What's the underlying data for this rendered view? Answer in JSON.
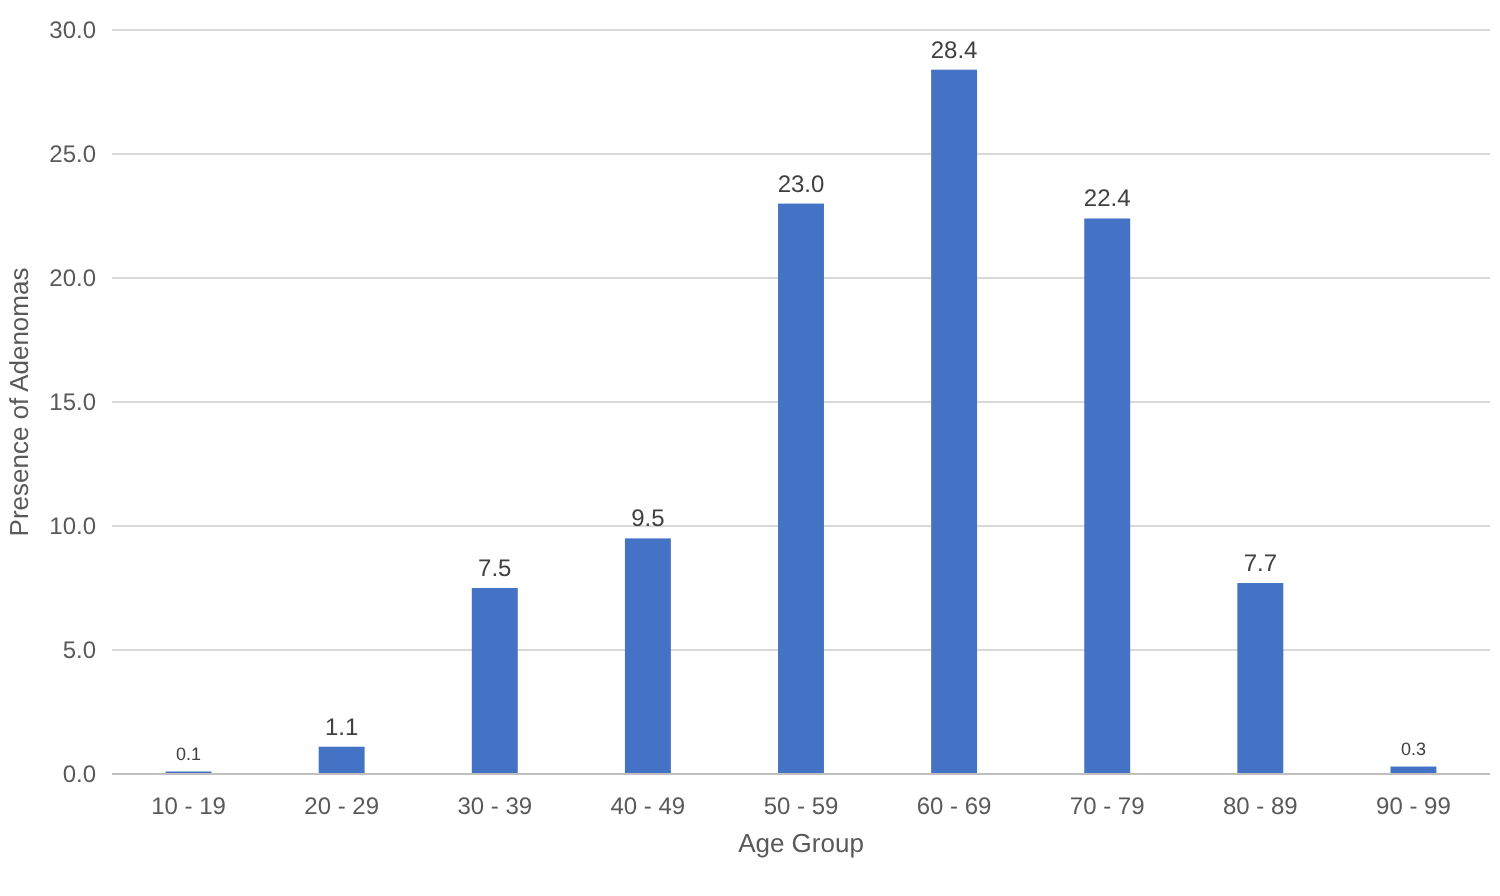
{
  "chart_data": {
    "type": "bar",
    "xlabel": "Age Group",
    "ylabel": "Presence of Adenomas",
    "categories": [
      "10 - 19",
      "20 - 29",
      "30 - 39",
      "40 - 49",
      "50 - 59",
      "60 - 69",
      "70 - 79",
      "80 - 89",
      "90 - 99"
    ],
    "values": [
      0.1,
      1.1,
      7.5,
      9.5,
      23.0,
      28.4,
      22.4,
      7.7,
      0.3
    ],
    "value_labels": [
      "0.1",
      "1.1",
      "7.5",
      "9.5",
      "23.0",
      "28.4",
      "22.4",
      "7.7",
      "0.3"
    ],
    "color": "#4472c4",
    "ylim": [
      0,
      30
    ],
    "yticks": [
      {
        "value": 0,
        "label": "0.0"
      },
      {
        "value": 5,
        "label": "5.0"
      },
      {
        "value": 10,
        "label": "10.0"
      },
      {
        "value": 15,
        "label": "15.0"
      },
      {
        "value": 20,
        "label": "20.0"
      },
      {
        "value": 25,
        "label": "25.0"
      },
      {
        "value": 30,
        "label": "30.0"
      }
    ],
    "grid": "y"
  }
}
